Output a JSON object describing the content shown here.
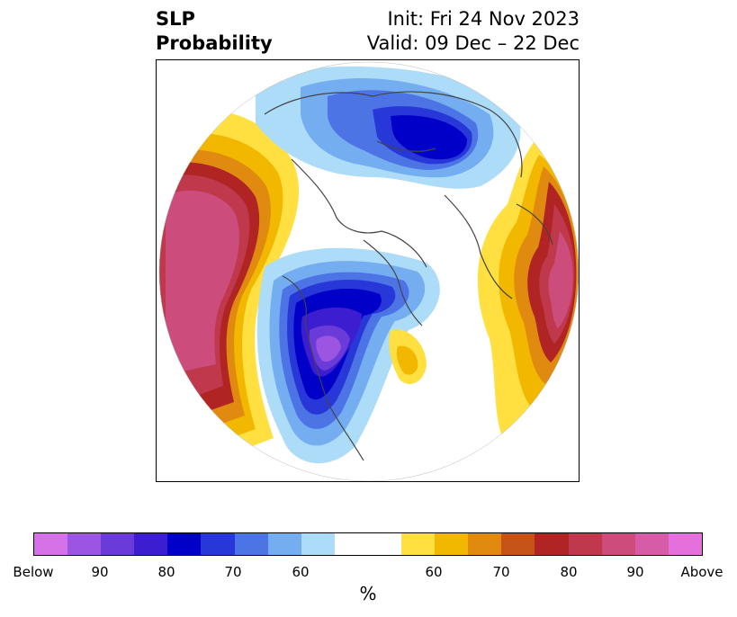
{
  "title": {
    "left_line1": "SLP",
    "left_line2": "Probability",
    "right_line1": "Init: Fri 24 Nov 2023",
    "right_line2": "Valid: 09 Dec – 22 Dec"
  },
  "colorbar": {
    "unit": "%",
    "below_colors": [
      "#d672e8",
      "#9c55e0",
      "#6a3bd8",
      "#3c1ed0",
      "#0000c8",
      "#2838d8",
      "#4c74e4",
      "#74aef0",
      "#acdcf8"
    ],
    "above_colors": [
      "#ffe040",
      "#f2b800",
      "#e08a10",
      "#c65418",
      "#b02424",
      "#c0384c",
      "#cc4c7c",
      "#d65ca8",
      "#e470dc"
    ],
    "ticks": [
      "Below",
      "90",
      "80",
      "70",
      "60",
      "60",
      "70",
      "80",
      "90",
      "Above"
    ]
  }
}
